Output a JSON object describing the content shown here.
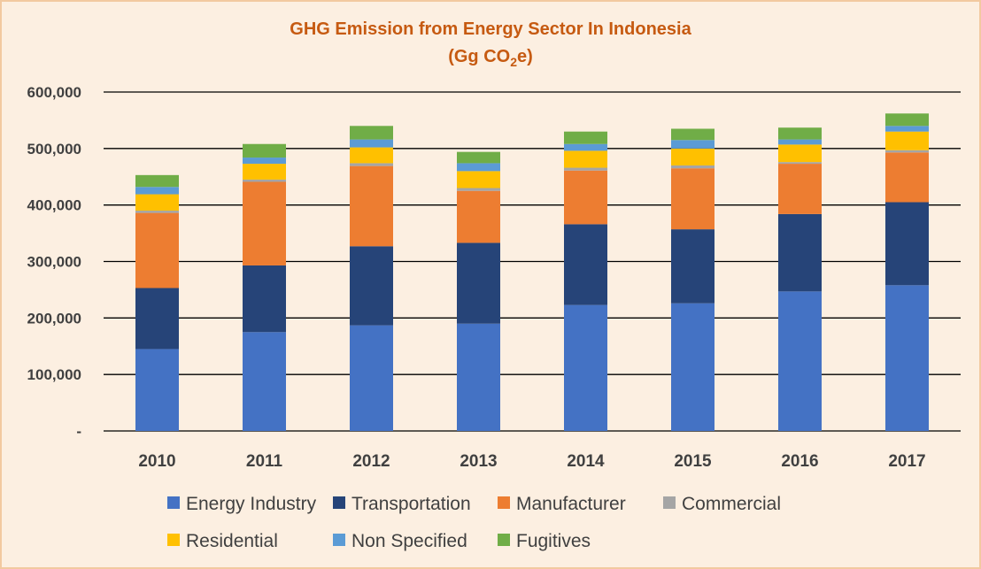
{
  "chart_data": {
    "type": "bar",
    "stacked": true,
    "title": "GHG Emission from Energy Sector In Indonesia",
    "subtitle": {
      "prefix": "(Gg CO",
      "subscript": "2",
      "suffix": "e)"
    },
    "categories": [
      "2010",
      "2011",
      "2012",
      "2013",
      "2014",
      "2015",
      "2016",
      "2017"
    ],
    "ylim": [
      0,
      600000
    ],
    "y_ticks": [
      0,
      100000,
      200000,
      300000,
      400000,
      500000,
      600000
    ],
    "y_tick_labels": [
      "-",
      "100,000",
      "200,000",
      "300,000",
      "400,000",
      "500,000",
      "600,000"
    ],
    "grid": true,
    "legend_position": "bottom",
    "series": [
      {
        "name": "Energy Industry",
        "color": "#4472c4",
        "values": [
          145000,
          175000,
          187000,
          190000,
          223000,
          226000,
          247000,
          258000
        ]
      },
      {
        "name": "Transportation",
        "color": "#264478",
        "values": [
          108000,
          118000,
          140000,
          143000,
          143000,
          131000,
          137000,
          147000
        ]
      },
      {
        "name": "Manufacturer",
        "color": "#ed7d31",
        "values": [
          133000,
          148000,
          142000,
          92000,
          95000,
          108000,
          89000,
          88000
        ]
      },
      {
        "name": "Commercial",
        "color": "#a5a5a5",
        "values": [
          4000,
          4000,
          5000,
          5000,
          5000,
          5000,
          3000,
          4000
        ]
      },
      {
        "name": "Residential",
        "color": "#ffc000",
        "values": [
          29000,
          28000,
          28000,
          30000,
          30000,
          30000,
          31000,
          33000
        ]
      },
      {
        "name": "Non Specified",
        "color": "#5b9bd5",
        "values": [
          13000,
          11000,
          14000,
          14000,
          12000,
          15000,
          9000,
          10000
        ]
      },
      {
        "name": "Fugitives",
        "color": "#70ad47",
        "values": [
          21000,
          24000,
          24000,
          20000,
          22000,
          20000,
          21000,
          22000
        ]
      }
    ]
  }
}
